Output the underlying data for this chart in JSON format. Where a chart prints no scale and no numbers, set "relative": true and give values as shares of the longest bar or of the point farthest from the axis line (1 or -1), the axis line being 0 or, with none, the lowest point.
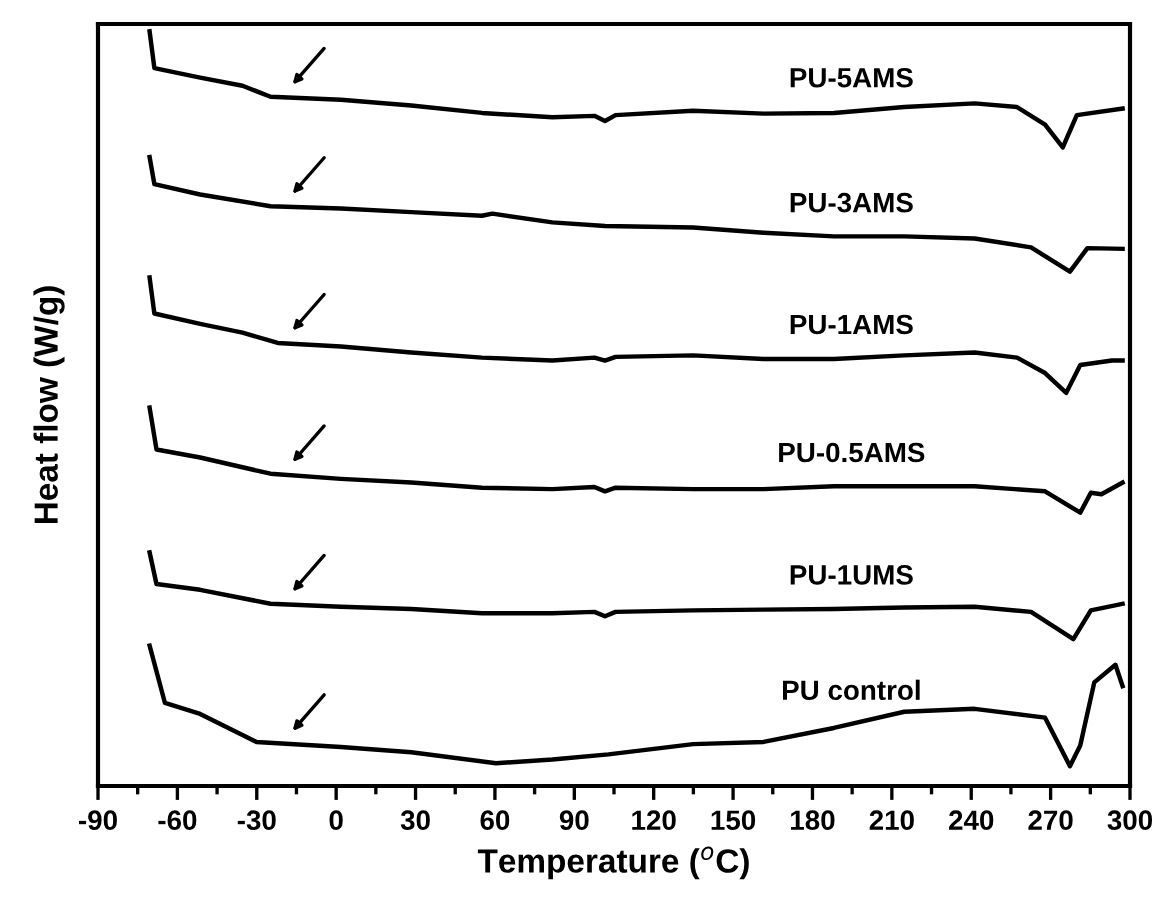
{
  "chart_data": {
    "type": "line",
    "relative": true,
    "xlabel": "Temperature ($^{o}$C)",
    "ylabel": "Heat flow (W/g)",
    "xlim": [
      -90,
      300
    ],
    "xticks": [
      -90,
      -60,
      -30,
      0,
      30,
      60,
      90,
      120,
      150,
      180,
      210,
      240,
      270,
      300
    ],
    "grid": false,
    "legend": false,
    "marker": "none",
    "line_style": "solid",
    "tick_labels": "x",
    "x": [
      -70.5,
      -68.7,
      -51.4,
      -35.4,
      -24.8,
      1.8,
      28.4,
      55.1,
      81.7,
      97.6,
      101.6,
      105.6,
      134.9,
      161.5,
      188.1,
      214.7,
      241.3,
      257.3,
      267.9,
      274.6,
      279.9,
      297.2
    ],
    "series": [
      {
        "name": "PU-5AMS",
        "color": "#000000",
        "values": [
          1.0,
          0.95,
          0.937,
          0.926,
          0.911,
          0.907,
          0.899,
          0.889,
          0.883,
          0.885,
          0.878,
          0.886,
          0.892,
          0.888,
          0.889,
          0.897,
          0.902,
          0.897,
          0.873,
          0.842,
          0.886,
          0.895
        ]
      },
      {
        "name": "PU-3AMS",
        "color": "#000000",
        "x": [
          -70.5,
          -68.7,
          -51.4,
          -24.8,
          1.8,
          28.4,
          55.1,
          59.0,
          81.7,
          101.6,
          134.9,
          161.5,
          188.1,
          214.7,
          241.3,
          262.6,
          277.3,
          283.9,
          297.2
        ],
        "values": [
          0.829,
          0.792,
          0.778,
          0.762,
          0.759,
          0.754,
          0.749,
          0.752,
          0.74,
          0.735,
          0.733,
          0.726,
          0.721,
          0.721,
          0.718,
          0.706,
          0.673,
          0.705,
          0.704
        ]
      },
      {
        "name": "PU-1AMS",
        "color": "#000000",
        "x": [
          -70.5,
          -68.7,
          -51.4,
          -35.4,
          -22.1,
          1.8,
          28.4,
          55.1,
          81.7,
          97.6,
          101.6,
          105.6,
          134.9,
          161.5,
          188.1,
          214.7,
          241.3,
          257.3,
          267.9,
          275.9,
          281.2,
          293.2,
          297.2
        ],
        "values": [
          0.665,
          0.616,
          0.602,
          0.59,
          0.576,
          0.571,
          0.563,
          0.556,
          0.552,
          0.556,
          0.552,
          0.557,
          0.559,
          0.554,
          0.554,
          0.559,
          0.563,
          0.556,
          0.535,
          0.508,
          0.546,
          0.552,
          0.552
        ]
      },
      {
        "name": "PU-0.5AMS",
        "color": "#000000",
        "x": [
          -70.5,
          -67.9,
          -51.4,
          -24.8,
          1.8,
          28.4,
          55.1,
          81.7,
          97.6,
          101.6,
          105.6,
          134.9,
          161.5,
          188.1,
          214.7,
          241.3,
          267.9,
          281.2,
          285.2,
          289.2,
          297.2
        ],
        "values": [
          0.488,
          0.431,
          0.42,
          0.398,
          0.391,
          0.386,
          0.379,
          0.377,
          0.38,
          0.374,
          0.379,
          0.377,
          0.377,
          0.381,
          0.381,
          0.381,
          0.374,
          0.345,
          0.372,
          0.37,
          0.386
        ]
      },
      {
        "name": "PU-1UMS",
        "color": "#000000",
        "x": [
          -70.5,
          -67.9,
          -51.4,
          -24.8,
          1.8,
          28.4,
          55.1,
          81.7,
          97.6,
          101.6,
          105.6,
          134.9,
          161.5,
          188.1,
          214.7,
          241.3,
          262.6,
          278.6,
          285.2,
          297.2
        ],
        "values": [
          0.291,
          0.248,
          0.24,
          0.221,
          0.217,
          0.214,
          0.208,
          0.208,
          0.21,
          0.204,
          0.21,
          0.212,
          0.213,
          0.214,
          0.216,
          0.217,
          0.21,
          0.173,
          0.212,
          0.221
        ]
      },
      {
        "name": "PU control",
        "color": "#000000",
        "x": [
          -70.5,
          -64.7,
          -51.4,
          -30.1,
          1.8,
          28.4,
          60.4,
          81.7,
          102.9,
          134.9,
          161.5,
          188.1,
          214.7,
          241.3,
          267.9,
          273.3,
          277.3,
          281.2,
          286.5,
          294.5,
          297.2
        ],
        "values": [
          0.164,
          0.086,
          0.071,
          0.033,
          0.026,
          0.019,
          0.004,
          0.009,
          0.016,
          0.03,
          0.033,
          0.052,
          0.074,
          0.078,
          0.066,
          0.028,
          0.0,
          0.028,
          0.114,
          0.138,
          0.109
        ]
      }
    ]
  }
}
